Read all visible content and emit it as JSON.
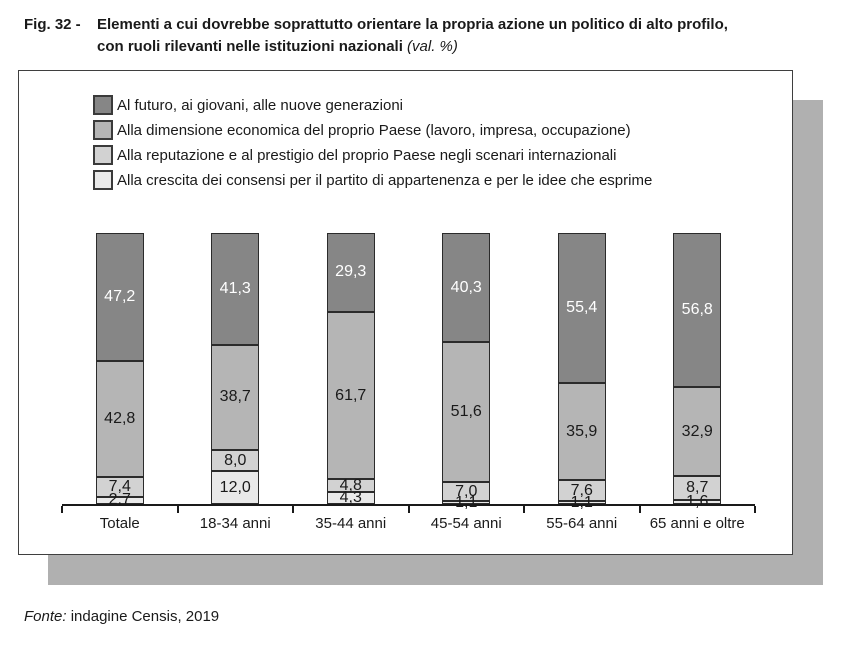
{
  "header": {
    "fig_label": "Fig. 32 -",
    "title_line1": "Elementi a cui dovrebbe soprattutto orientare la propria azione un politico di alto profilo,",
    "title_line2": "con ruoli rilevanti nelle istituzioni nazionali",
    "title_note": "(val. %)"
  },
  "legend": [
    {
      "label": "Al futuro, ai giovani, alle nuove generazioni",
      "color": "#868686"
    },
    {
      "label": "Alla dimensione economica del proprio Paese (lavoro, impresa, occupazione)",
      "color": "#b5b5b5"
    },
    {
      "label": "Alla reputazione e al prestigio del proprio Paese negli scenari internazionali",
      "color": "#d2d2d2"
    },
    {
      "label": "Alla crescita dei consensi per il partito di appartenenza e per le idee che esprime",
      "color": "#e9e9e9"
    }
  ],
  "chart_data": {
    "type": "bar",
    "stacked": true,
    "unit": "val. %",
    "categories": [
      "Totale",
      "18-34 anni",
      "35-44 anni",
      "45-54 anni",
      "55-64 anni",
      "65 anni e oltre"
    ],
    "series": [
      {
        "name": "Al futuro, ai giovani, alle nuove generazioni",
        "color": "#868686",
        "text_color": "#ffffff",
        "values": [
          47.2,
          41.3,
          29.3,
          40.3,
          55.4,
          56.8
        ]
      },
      {
        "name": "Alla dimensione economica del proprio Paese (lavoro, impresa, occupazione)",
        "color": "#b5b5b5",
        "text_color": "#1a1a1a",
        "values": [
          42.8,
          38.7,
          61.7,
          51.6,
          35.9,
          32.9
        ]
      },
      {
        "name": "Alla reputazione e al prestigio del proprio Paese negli scenari internazionali",
        "color": "#d2d2d2",
        "text_color": "#1a1a1a",
        "values": [
          7.4,
          8.0,
          4.8,
          7.0,
          7.6,
          8.7
        ]
      },
      {
        "name": "Alla crescita dei consensi per il partito di appartenenza e per le idee che esprime",
        "color": "#e9e9e9",
        "text_color": "#1a1a1a",
        "values": [
          2.7,
          12.0,
          4.3,
          1.1,
          1.1,
          1.6
        ]
      }
    ],
    "value_label_decimal_separator": ",",
    "ylim": [
      0,
      100
    ],
    "grid": false,
    "legend_position": "top"
  },
  "footer": {
    "source_label": "Fonte:",
    "source_text": "indagine Censis, 2019"
  }
}
